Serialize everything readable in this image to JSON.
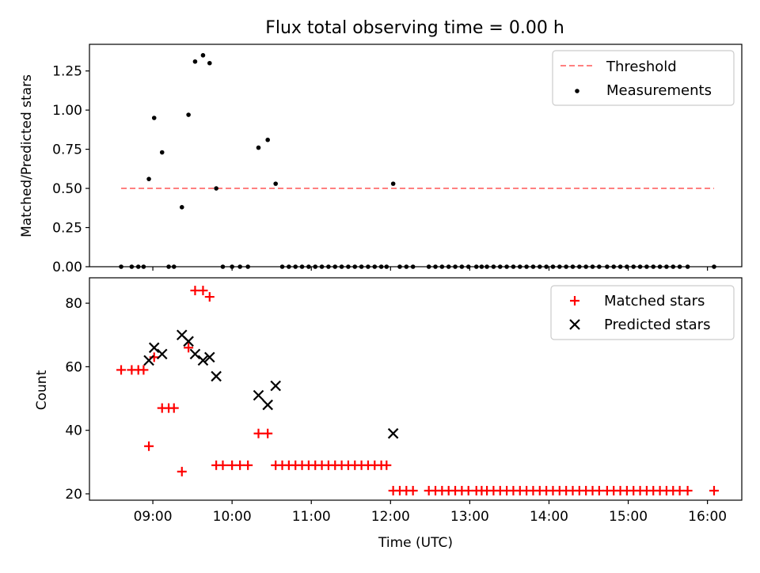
{
  "chart_data": [
    {
      "type": "scatter",
      "title": "Flux total observing time = 0.00 h",
      "xlabel": "",
      "ylabel": "Matched/Predicted stars",
      "ylim": [
        0,
        1.42
      ],
      "xlim": [
        "08:12",
        "16:26"
      ],
      "yticks": [
        0.0,
        0.25,
        0.5,
        0.75,
        1.0,
        1.25
      ],
      "ytick_labels": [
        "0.00",
        "0.25",
        "0.50",
        "0.75",
        "1.00",
        "1.25"
      ],
      "xticks": [
        "09:00",
        "10:00",
        "11:00",
        "12:00",
        "13:00",
        "14:00",
        "15:00",
        "16:00"
      ],
      "legend_position": "upper right",
      "grid": false,
      "threshold": {
        "name": "Threshold",
        "value": 0.5,
        "x_start": "08:36",
        "x_end": "16:05",
        "color": "#ff8080"
      },
      "series": [
        {
          "name": "Measurements",
          "color": "#000000",
          "x": [
            "08:36",
            "08:44",
            "08:49",
            "08:53",
            "08:57",
            "09:01",
            "09:07",
            "09:12",
            "09:16",
            "09:22",
            "09:27",
            "09:32",
            "09:38",
            "09:43",
            "09:48",
            "09:53",
            "10:00",
            "10:06",
            "10:12",
            "10:20",
            "10:27",
            "10:33",
            "10:38",
            "10:43",
            "10:48",
            "10:53",
            "10:58",
            "11:03",
            "11:08",
            "11:13",
            "11:18",
            "11:23",
            "11:28",
            "11:33",
            "11:38",
            "11:43",
            "11:48",
            "11:53",
            "11:57",
            "12:02",
            "12:07",
            "12:12",
            "12:17",
            "12:29",
            "12:34",
            "12:39",
            "12:44",
            "12:49",
            "12:54",
            "12:59",
            "13:05",
            "13:09",
            "13:13",
            "13:18",
            "13:23",
            "13:28",
            "13:33",
            "13:38",
            "13:43",
            "13:48",
            "13:53",
            "13:58",
            "14:03",
            "14:08",
            "14:13",
            "14:18",
            "14:23",
            "14:28",
            "14:33",
            "14:38",
            "14:44",
            "14:49",
            "14:54",
            "14:59",
            "15:04",
            "15:09",
            "15:14",
            "15:19",
            "15:24",
            "15:29",
            "15:34",
            "15:39",
            "15:45",
            "16:05"
          ],
          "y": [
            0.0,
            0.0,
            0.0,
            0.0,
            0.56,
            0.95,
            0.73,
            0.0,
            0.0,
            0.38,
            0.97,
            1.31,
            1.35,
            1.3,
            0.5,
            0.0,
            0.0,
            0.0,
            0.0,
            0.76,
            0.81,
            0.53,
            0.0,
            0.0,
            0.0,
            0.0,
            0.0,
            0.0,
            0.0,
            0.0,
            0.0,
            0.0,
            0.0,
            0.0,
            0.0,
            0.0,
            0.0,
            0.0,
            0.0,
            0.53,
            0.0,
            0.0,
            0.0,
            0.0,
            0.0,
            0.0,
            0.0,
            0.0,
            0.0,
            0.0,
            0.0,
            0.0,
            0.0,
            0.0,
            0.0,
            0.0,
            0.0,
            0.0,
            0.0,
            0.0,
            0.0,
            0.0,
            0.0,
            0.0,
            0.0,
            0.0,
            0.0,
            0.0,
            0.0,
            0.0,
            0.0,
            0.0,
            0.0,
            0.0,
            0.0,
            0.0,
            0.0,
            0.0,
            0.0,
            0.0,
            0.0,
            0.0,
            0.0,
            0.0
          ]
        }
      ]
    },
    {
      "type": "scatter",
      "title": "",
      "xlabel": "Time (UTC)",
      "ylabel": "Count",
      "ylim": [
        18,
        88
      ],
      "xlim": [
        "08:12",
        "16:26"
      ],
      "yticks": [
        20,
        40,
        60,
        80
      ],
      "ytick_labels": [
        "20",
        "40",
        "60",
        "80"
      ],
      "xticks": [
        "09:00",
        "10:00",
        "11:00",
        "12:00",
        "13:00",
        "14:00",
        "15:00",
        "16:00"
      ],
      "legend_position": "upper right",
      "grid": false,
      "series": [
        {
          "name": "Matched stars",
          "color": "#ff0000",
          "marker": "plus",
          "x": [
            "08:36",
            "08:44",
            "08:49",
            "08:53",
            "08:57",
            "09:01",
            "09:07",
            "09:12",
            "09:16",
            "09:22",
            "09:27",
            "09:32",
            "09:38",
            "09:43",
            "09:48",
            "09:53",
            "10:00",
            "10:06",
            "10:12",
            "10:20",
            "10:27",
            "10:33",
            "10:38",
            "10:43",
            "10:48",
            "10:53",
            "10:58",
            "11:03",
            "11:08",
            "11:13",
            "11:18",
            "11:23",
            "11:28",
            "11:33",
            "11:38",
            "11:43",
            "11:48",
            "11:53",
            "11:57",
            "12:02",
            "12:07",
            "12:12",
            "12:17",
            "12:29",
            "12:34",
            "12:39",
            "12:44",
            "12:49",
            "12:54",
            "12:59",
            "13:05",
            "13:09",
            "13:13",
            "13:18",
            "13:23",
            "13:28",
            "13:33",
            "13:38",
            "13:43",
            "13:48",
            "13:53",
            "13:58",
            "14:03",
            "14:08",
            "14:13",
            "14:18",
            "14:23",
            "14:28",
            "14:33",
            "14:38",
            "14:44",
            "14:49",
            "14:54",
            "14:59",
            "15:04",
            "15:09",
            "15:14",
            "15:19",
            "15:24",
            "15:29",
            "15:34",
            "15:39",
            "15:45",
            "16:05"
          ],
          "y": [
            59,
            59,
            59,
            59,
            35,
            63,
            47,
            47,
            47,
            27,
            66,
            84,
            84,
            82,
            29,
            29,
            29,
            29,
            29,
            39,
            39,
            29,
            29,
            29,
            29,
            29,
            29,
            29,
            29,
            29,
            29,
            29,
            29,
            29,
            29,
            29,
            29,
            29,
            29,
            21,
            21,
            21,
            21,
            21,
            21,
            21,
            21,
            21,
            21,
            21,
            21,
            21,
            21,
            21,
            21,
            21,
            21,
            21,
            21,
            21,
            21,
            21,
            21,
            21,
            21,
            21,
            21,
            21,
            21,
            21,
            21,
            21,
            21,
            21,
            21,
            21,
            21,
            21,
            21,
            21,
            21,
            21,
            21,
            21
          ]
        },
        {
          "name": "Predicted stars",
          "color": "#000000",
          "marker": "x",
          "x": [
            "08:57",
            "09:01",
            "09:07",
            "09:22",
            "09:27",
            "09:32",
            "09:38",
            "09:43",
            "09:48",
            "10:20",
            "10:27",
            "10:33",
            "12:02"
          ],
          "y": [
            62,
            66,
            64,
            70,
            68,
            64,
            62,
            63,
            57,
            51,
            48,
            54,
            39
          ]
        }
      ]
    }
  ]
}
